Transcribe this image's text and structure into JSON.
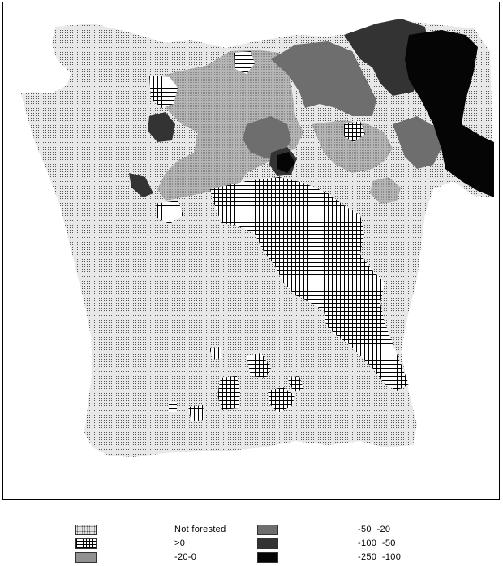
{
  "map": {
    "colors": {
      "not_forested": "#e6e6e6",
      "gt0": "#ffffff",
      "c_20_0": "#b8b8b8",
      "c_50_20": "#6e6e6e",
      "c_100_50": "#333333",
      "c_250_100": "#050505"
    }
  },
  "legend": {
    "items": [
      {
        "label": "Not forested",
        "pattern": "sparse-dots"
      },
      {
        "label": ">0",
        "pattern": "grid"
      },
      {
        "label": "-20-0",
        "pattern": "light-gray"
      },
      {
        "label": "-50  -20",
        "pattern": "mid-gray"
      },
      {
        "label": "-100  -50",
        "pattern": "dark-gray"
      },
      {
        "label": "-250  -100",
        "pattern": "black"
      }
    ]
  }
}
